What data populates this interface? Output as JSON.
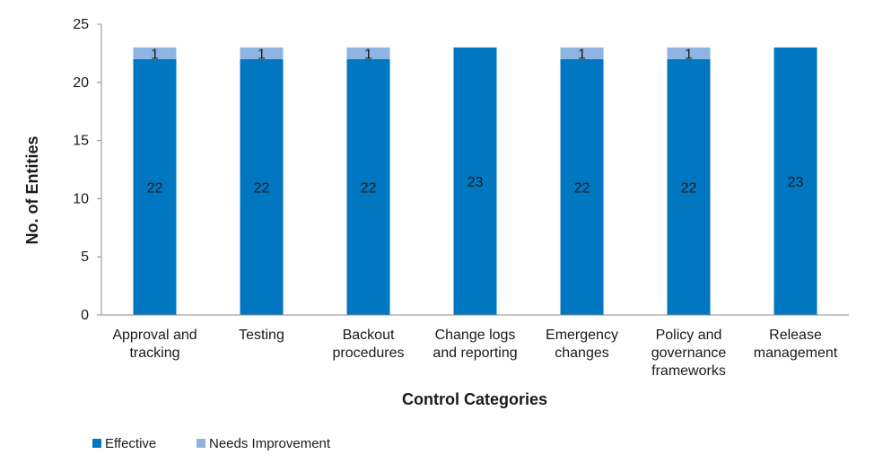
{
  "chart_data": {
    "type": "bar",
    "stacked": true,
    "categories": [
      [
        "Approval and",
        "tracking"
      ],
      [
        "Testing"
      ],
      [
        "Backout",
        "procedures"
      ],
      [
        "Change logs",
        "and reporting"
      ],
      [
        "Emergency",
        "changes"
      ],
      [
        "Policy and",
        "governance",
        "frameworks"
      ],
      [
        "Release",
        "management"
      ]
    ],
    "series": [
      {
        "name": "Effective",
        "values": [
          22,
          22,
          22,
          23,
          22,
          22,
          23
        ],
        "color": "#0077c0"
      },
      {
        "name": "Needs Improvement",
        "values": [
          1,
          1,
          1,
          0,
          1,
          1,
          0
        ],
        "color": "#8db4e2"
      }
    ],
    "xlabel": "Control Categories",
    "ylabel": "No. of Entities",
    "ylim": [
      0,
      25
    ],
    "yticks": [
      "0",
      "5",
      "10",
      "15",
      "20",
      "25"
    ],
    "grid": false,
    "legend_position": "bottom-left"
  }
}
